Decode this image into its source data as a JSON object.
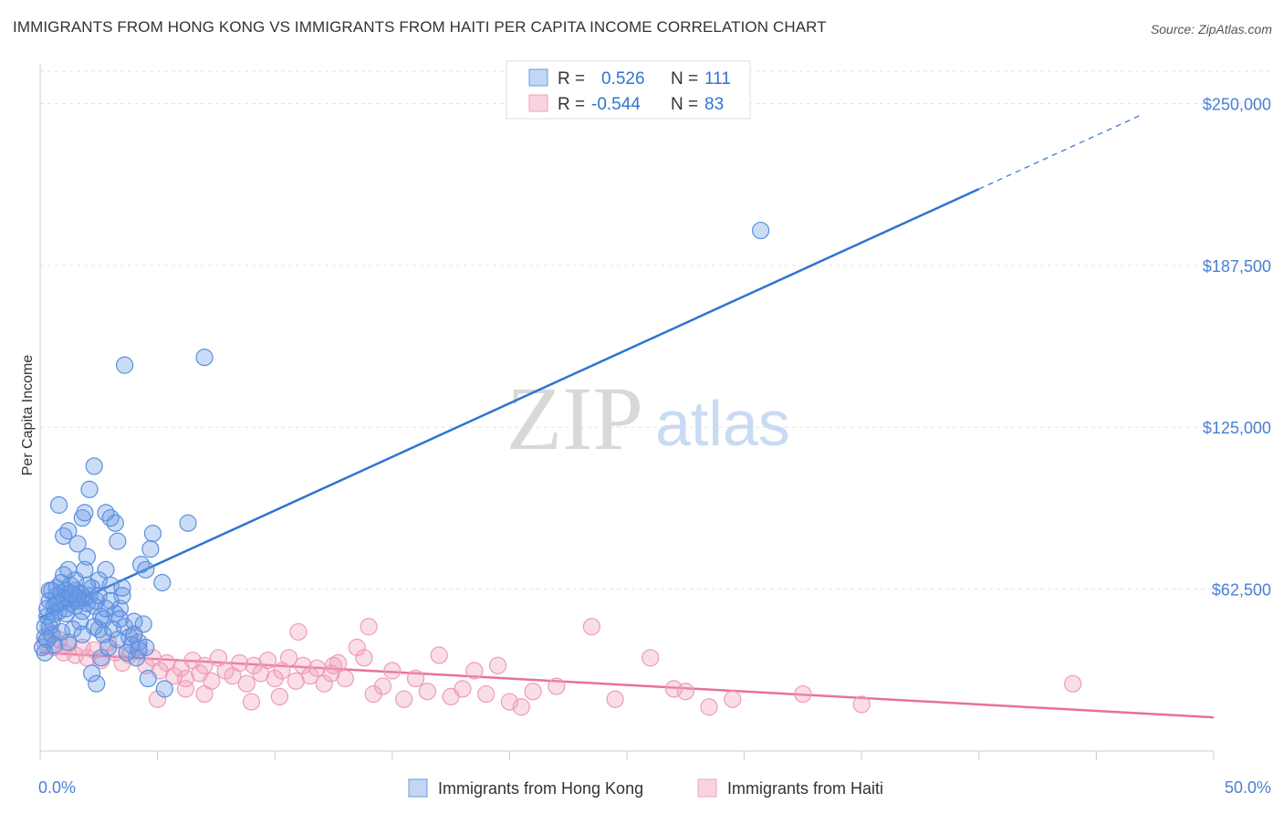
{
  "title": "IMMIGRANTS FROM HONG KONG VS IMMIGRANTS FROM HAITI PER CAPITA INCOME CORRELATION CHART",
  "source": "Source: ZipAtlas.com",
  "watermark": {
    "zip": "ZIP",
    "atlas": "atlas"
  },
  "colors": {
    "blue": "#6b9be6",
    "blue_line": "#2f74d0",
    "pink": "#f2a0b8",
    "pink_line": "#e8709a",
    "tick": "#4a7fd4",
    "grid": "#e3e3e3"
  },
  "legend": {
    "r_label": "R =",
    "n_label": "N =",
    "series": [
      {
        "r": "0.526",
        "n": "111"
      },
      {
        "r": "-0.544",
        "n": "83"
      }
    ]
  },
  "chart_data": {
    "type": "scatter",
    "xlabel": "",
    "ylabel": "Per Capita Income",
    "xlim": [
      0,
      50
    ],
    "ylim": [
      0,
      262500
    ],
    "x_tick_labels": {
      "left": "0.0%",
      "right": "50.0%"
    },
    "y_ticks": [
      62500,
      125000,
      187500,
      250000
    ],
    "y_tick_labels": [
      "$62,500",
      "$125,000",
      "$187,500",
      "$250,000"
    ],
    "grid": "horizontal dashed",
    "legend_position": "top-center",
    "series": [
      {
        "name": "Immigrants from Hong Kong",
        "color": "#6b9be6",
        "trend": {
          "x0": 0,
          "y0": 51500,
          "x1": 40,
          "y1": 217000,
          "dashed_to_x": 47
        },
        "points": [
          [
            0.1,
            40000
          ],
          [
            0.2,
            44000
          ],
          [
            0.2,
            48000
          ],
          [
            0.3,
            52000
          ],
          [
            0.3,
            55000
          ],
          [
            0.4,
            58000
          ],
          [
            0.4,
            62000
          ],
          [
            0.5,
            45000
          ],
          [
            0.5,
            50000
          ],
          [
            0.6,
            53000
          ],
          [
            0.6,
            56000
          ],
          [
            0.7,
            60000
          ],
          [
            0.7,
            63000
          ],
          [
            0.8,
            57000
          ],
          [
            0.8,
            54000
          ],
          [
            0.9,
            61000
          ],
          [
            0.9,
            65000
          ],
          [
            1.0,
            68000
          ],
          [
            1.0,
            58000
          ],
          [
            1.1,
            62000
          ],
          [
            1.1,
            55000
          ],
          [
            1.2,
            59000
          ],
          [
            1.2,
            70000
          ],
          [
            1.3,
            57000
          ],
          [
            1.3,
            64000
          ],
          [
            1.4,
            60000
          ],
          [
            1.5,
            56000
          ],
          [
            1.5,
            62000
          ],
          [
            1.6,
            58000
          ],
          [
            1.7,
            61000
          ],
          [
            1.8,
            54000
          ],
          [
            1.9,
            59000
          ],
          [
            2.0,
            57000
          ],
          [
            2.1,
            60000
          ],
          [
            2.2,
            63000
          ],
          [
            2.3,
            56000
          ],
          [
            2.4,
            58000
          ],
          [
            2.5,
            47000
          ],
          [
            2.6,
            52000
          ],
          [
            2.7,
            45000
          ],
          [
            0.8,
            95000
          ],
          [
            1.0,
            83000
          ],
          [
            1.2,
            85000
          ],
          [
            1.6,
            80000
          ],
          [
            1.8,
            90000
          ],
          [
            1.9,
            92000
          ],
          [
            2.0,
            75000
          ],
          [
            2.1,
            101000
          ],
          [
            2.3,
            110000
          ],
          [
            2.8,
            92000
          ],
          [
            3.0,
            90000
          ],
          [
            3.2,
            88000
          ],
          [
            3.3,
            81000
          ],
          [
            3.6,
            149000
          ],
          [
            4.8,
            84000
          ],
          [
            4.7,
            78000
          ],
          [
            4.3,
            72000
          ],
          [
            4.5,
            70000
          ],
          [
            5.2,
            65000
          ],
          [
            6.3,
            88000
          ],
          [
            7.0,
            152000
          ],
          [
            2.5,
            66000
          ],
          [
            2.8,
            70000
          ],
          [
            3.0,
            64000
          ],
          [
            3.4,
            55000
          ],
          [
            3.5,
            60000
          ],
          [
            3.6,
            48000
          ],
          [
            3.8,
            44000
          ],
          [
            3.9,
            41000
          ],
          [
            4.0,
            50000
          ],
          [
            4.1,
            36000
          ],
          [
            4.2,
            42000
          ],
          [
            4.5,
            40000
          ],
          [
            4.6,
            28000
          ],
          [
            5.3,
            24000
          ],
          [
            2.2,
            30000
          ],
          [
            2.4,
            26000
          ],
          [
            2.6,
            36000
          ],
          [
            2.9,
            40000
          ],
          [
            3.1,
            47000
          ],
          [
            3.3,
            43000
          ],
          [
            3.7,
            38000
          ],
          [
            3.2,
            53000
          ],
          [
            2.7,
            51000
          ],
          [
            2.3,
            48000
          ],
          [
            1.7,
            50000
          ],
          [
            1.4,
            47000
          ],
          [
            1.2,
            42000
          ],
          [
            0.9,
            46000
          ],
          [
            0.6,
            41000
          ],
          [
            0.4,
            48000
          ],
          [
            0.3,
            43000
          ],
          [
            1.1,
            53000
          ],
          [
            1.5,
            66000
          ],
          [
            1.9,
            70000
          ],
          [
            2.0,
            64000
          ],
          [
            2.5,
            60000
          ],
          [
            3.0,
            58000
          ],
          [
            3.5,
            63000
          ],
          [
            4.0,
            45000
          ],
          [
            4.4,
            49000
          ],
          [
            1.3,
            61000
          ],
          [
            0.7,
            57000
          ],
          [
            0.5,
            62000
          ],
          [
            1.6,
            59000
          ],
          [
            2.8,
            55000
          ],
          [
            3.4,
            51000
          ],
          [
            4.2,
            39000
          ],
          [
            0.2,
            38000
          ],
          [
            1.8,
            45000
          ],
          [
            30.7,
            201000
          ]
        ]
      },
      {
        "name": "Immigrants from Haiti",
        "color": "#f2a0b8",
        "trend": {
          "x0": 0,
          "y0": 38000,
          "x1": 50,
          "y1": 13000
        },
        "points": [
          [
            0.2,
            42000
          ],
          [
            0.4,
            46000
          ],
          [
            0.6,
            40000
          ],
          [
            0.8,
            43000
          ],
          [
            1.0,
            38000
          ],
          [
            1.2,
            41000
          ],
          [
            1.5,
            37000
          ],
          [
            1.8,
            40000
          ],
          [
            2.0,
            36000
          ],
          [
            2.3,
            39000
          ],
          [
            2.6,
            35000
          ],
          [
            2.9,
            42000
          ],
          [
            3.2,
            38000
          ],
          [
            3.5,
            34000
          ],
          [
            3.8,
            37000
          ],
          [
            4.0,
            45000
          ],
          [
            4.2,
            40000
          ],
          [
            4.5,
            33000
          ],
          [
            4.8,
            36000
          ],
          [
            5.1,
            31000
          ],
          [
            5.4,
            34000
          ],
          [
            5.7,
            29000
          ],
          [
            6.0,
            32000
          ],
          [
            6.2,
            28000
          ],
          [
            6.5,
            35000
          ],
          [
            6.8,
            30000
          ],
          [
            7.0,
            33000
          ],
          [
            7.3,
            27000
          ],
          [
            7.6,
            36000
          ],
          [
            7.9,
            31000
          ],
          [
            8.2,
            29000
          ],
          [
            8.5,
            34000
          ],
          [
            8.8,
            26000
          ],
          [
            9.1,
            33000
          ],
          [
            9.4,
            30000
          ],
          [
            9.7,
            35000
          ],
          [
            10.0,
            28000
          ],
          [
            10.3,
            31000
          ],
          [
            10.6,
            36000
          ],
          [
            10.9,
            27000
          ],
          [
            11.2,
            33000
          ],
          [
            11.5,
            29000
          ],
          [
            11.8,
            32000
          ],
          [
            12.1,
            26000
          ],
          [
            12.4,
            30000
          ],
          [
            12.7,
            34000
          ],
          [
            13.0,
            28000
          ],
          [
            13.5,
            40000
          ],
          [
            13.8,
            36000
          ],
          [
            14.2,
            22000
          ],
          [
            14.6,
            25000
          ],
          [
            15.0,
            31000
          ],
          [
            15.5,
            20000
          ],
          [
            16.0,
            28000
          ],
          [
            16.5,
            23000
          ],
          [
            17.0,
            37000
          ],
          [
            17.5,
            21000
          ],
          [
            18.0,
            24000
          ],
          [
            18.5,
            31000
          ],
          [
            19.0,
            22000
          ],
          [
            19.5,
            33000
          ],
          [
            20.0,
            19000
          ],
          [
            20.5,
            17000
          ],
          [
            21.0,
            23000
          ],
          [
            22.0,
            25000
          ],
          [
            23.5,
            48000
          ],
          [
            24.5,
            20000
          ],
          [
            26.0,
            36000
          ],
          [
            27.0,
            24000
          ],
          [
            27.5,
            23000
          ],
          [
            28.5,
            17000
          ],
          [
            29.5,
            20000
          ],
          [
            32.5,
            22000
          ],
          [
            35.0,
            18000
          ],
          [
            44.0,
            26000
          ],
          [
            5.0,
            20000
          ],
          [
            6.2,
            24000
          ],
          [
            7.0,
            22000
          ],
          [
            9.0,
            19000
          ],
          [
            10.2,
            21000
          ],
          [
            11.0,
            46000
          ],
          [
            12.5,
            33000
          ],
          [
            14.0,
            48000
          ]
        ]
      }
    ]
  },
  "bottom_legend": [
    "Immigrants from Hong Kong",
    "Immigrants from Haiti"
  ]
}
